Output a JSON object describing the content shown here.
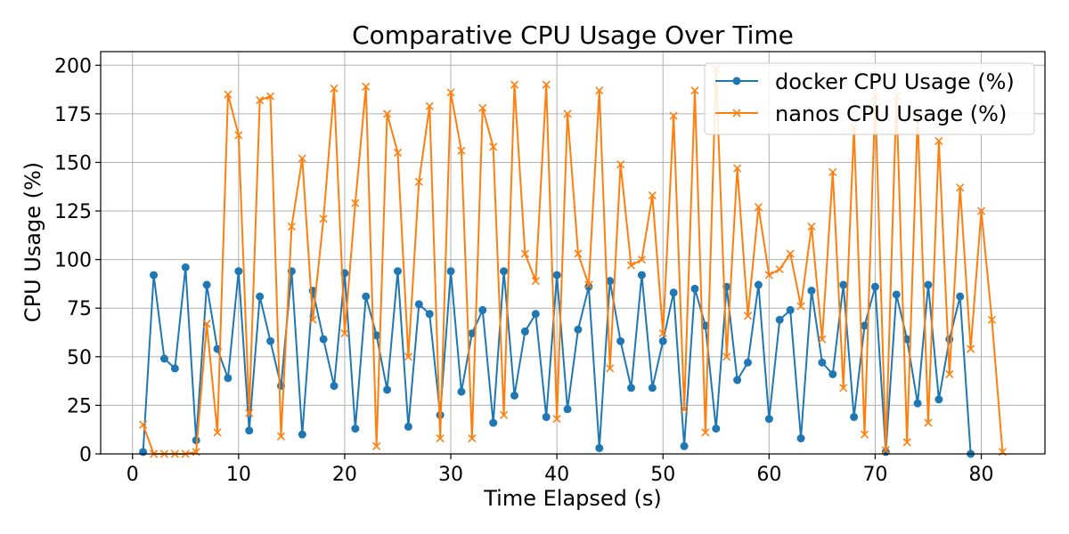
{
  "chart_data": {
    "type": "line",
    "title": "Comparative CPU Usage Over Time",
    "xlabel": "Time Elapsed (s)",
    "ylabel": "CPU Usage (%)",
    "xlim": [
      -3,
      86
    ],
    "ylim": [
      0,
      207
    ],
    "xticks": [
      0,
      10,
      20,
      30,
      40,
      50,
      60,
      70,
      80
    ],
    "yticks": [
      0,
      25,
      50,
      75,
      100,
      125,
      150,
      175,
      200
    ],
    "grid": true,
    "legend_position": "top-right",
    "series": [
      {
        "name": "docker CPU Usage (%)",
        "color": "#1f77b4",
        "marker": "circle",
        "x": [
          1,
          2,
          3,
          4,
          5,
          6,
          7,
          8,
          9,
          10,
          11,
          12,
          13,
          14,
          15,
          16,
          17,
          18,
          19,
          20,
          21,
          22,
          23,
          24,
          25,
          26,
          27,
          28,
          29,
          30,
          31,
          32,
          33,
          34,
          35,
          36,
          37,
          38,
          39,
          40,
          41,
          42,
          43,
          44,
          45,
          46,
          47,
          48,
          49,
          50,
          51,
          52,
          53,
          54,
          55,
          56,
          57,
          58,
          59,
          60,
          61,
          62,
          63,
          64,
          65,
          66,
          67,
          68,
          69,
          70,
          71,
          72,
          73,
          74,
          75,
          76,
          77,
          78,
          79
        ],
        "values": [
          1,
          92,
          49,
          44,
          96,
          7,
          87,
          54,
          39,
          94,
          12,
          81,
          58,
          35,
          94,
          10,
          84,
          59,
          35,
          93,
          13,
          81,
          61,
          33,
          94,
          14,
          77,
          72,
          20,
          94,
          32,
          62,
          74,
          16,
          94,
          30,
          63,
          72,
          19,
          92,
          23,
          64,
          86,
          3,
          89,
          58,
          34,
          92,
          34,
          58,
          83,
          4,
          85,
          66,
          13,
          86,
          38,
          47,
          87,
          18,
          69,
          74,
          8,
          84,
          47,
          41,
          87,
          19,
          66,
          86,
          1,
          82,
          59,
          26,
          87,
          28,
          59,
          81,
          0
        ]
      },
      {
        "name": "nanos CPU Usage (%)",
        "color": "#ff7f0e",
        "marker": "x",
        "x": [
          1,
          2,
          3,
          4,
          5,
          6,
          7,
          8,
          9,
          10,
          11,
          12,
          13,
          14,
          15,
          16,
          17,
          18,
          19,
          20,
          21,
          22,
          23,
          24,
          25,
          26,
          27,
          28,
          29,
          30,
          31,
          32,
          33,
          34,
          35,
          36,
          37,
          38,
          39,
          40,
          41,
          42,
          43,
          44,
          45,
          46,
          47,
          48,
          49,
          50,
          51,
          52,
          53,
          54,
          55,
          56,
          57,
          58,
          59,
          60,
          61,
          62,
          63,
          64,
          65,
          66,
          67,
          68,
          69,
          70,
          71,
          72,
          73,
          74,
          75,
          76,
          77,
          78,
          79,
          80,
          81,
          82
        ],
        "values": [
          15,
          0,
          0,
          0,
          0,
          1,
          67,
          11,
          185,
          164,
          21,
          182,
          184,
          9,
          117,
          152,
          69,
          121,
          188,
          62,
          129,
          189,
          4,
          175,
          155,
          50,
          140,
          179,
          8,
          186,
          156,
          8,
          178,
          158,
          20,
          190,
          103,
          89,
          190,
          18,
          175,
          103,
          87,
          187,
          44,
          149,
          97,
          100,
          133,
          62,
          174,
          23,
          187,
          11,
          198,
          50,
          147,
          71,
          127,
          92,
          95,
          103,
          76,
          117,
          59,
          145,
          34,
          168,
          10,
          184,
          2,
          184,
          6,
          174,
          16,
          161,
          41,
          137,
          54,
          125,
          69,
          1
        ]
      }
    ]
  }
}
